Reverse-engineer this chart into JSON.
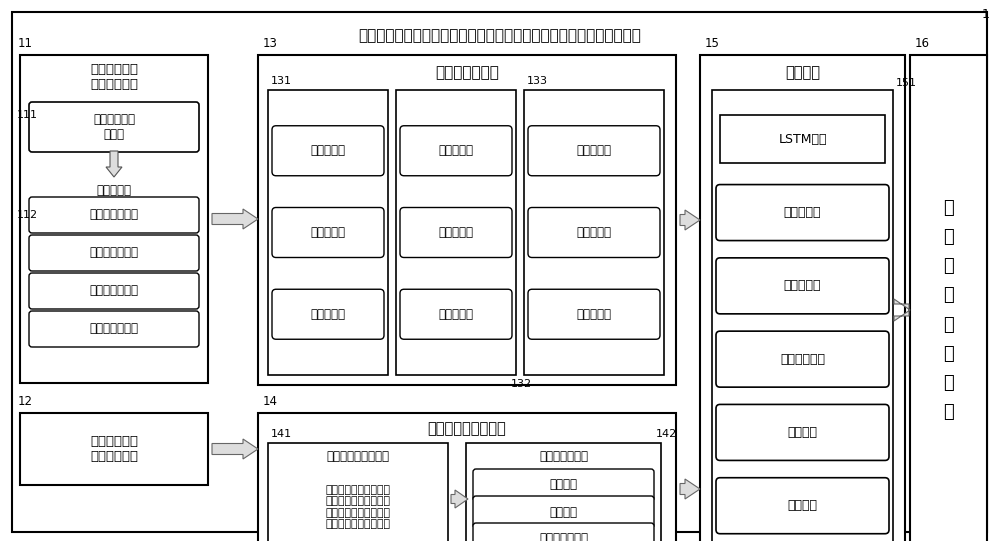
{
  "title": "融合测试与车联网运行数据的新能源公交车电池剩余寿命预测方案框架",
  "background_color": "#ffffff",
  "label_1": "1",
  "label_11": "11",
  "label_12": "12",
  "label_13": "13",
  "label_14": "14",
  "label_15": "15",
  "label_16": "16",
  "label_111": "111",
  "label_112": "112",
  "label_131": "131",
  "label_132": "132",
  "label_133": "133",
  "label_141": "141",
  "label_142": "142",
  "label_151": "151",
  "box11_title": "新能源公交车\n联网运行数据",
  "box11_sub1": "车联网运行原\n始数据",
  "box11_sub2": "数据预处理",
  "box11_sub3": "行驶有充电片段",
  "box11_sub4": "行驶无充电片段",
  "box11_sub5": "停车有充电片段",
  "box11_sub6": "停车无充电片段",
  "box12_title": "新能源公交车\n容量测试数据",
  "box13_title": "车辆特征值提取",
  "box131_items": [
    "月平均温度",
    "月高温时长",
    "月低温时长"
  ],
  "box132_items": [
    "月充电次数",
    "月快充占比",
    "月慢充占比"
  ],
  "box133_items": [
    "月行驶里程",
    "月行驶时间",
    "月行驶次数"
  ],
  "box14_title": "电池容量目标值计算",
  "box141_title": "测试与运行数据融合",
  "box141_text": "容量测试结果与当次测\n试时的车辆采集温度、\n电流、时间、里程、额\n定容量等数据进行融合",
  "box142_title": "容量衰退量确定",
  "box142_items": [
    "温度修正",
    "电流修正",
    "容量衰退率计算"
  ],
  "box15_title": "模型构建",
  "box151_items": [
    "LSTM模型",
    "加载数据集",
    "数据预处理",
    "模型数据输入",
    "模型训练",
    "模型预测"
  ],
  "box16_title": "模\n型\n预\n测\n结\n果\n输\n出"
}
